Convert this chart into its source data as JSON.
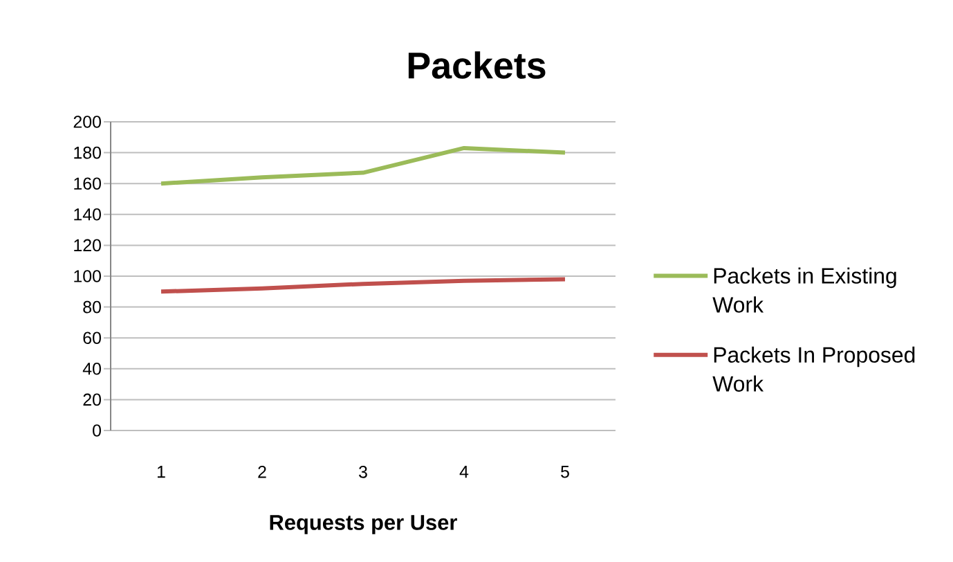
{
  "chart_data": {
    "type": "line",
    "title": "Packets",
    "xlabel": "Requests per User",
    "categories": [
      "1",
      "2",
      "3",
      "4",
      "5"
    ],
    "series": [
      {
        "name": "Packets in Existing Work",
        "color": "#9bbb59",
        "values": [
          160,
          164,
          167,
          183,
          180
        ]
      },
      {
        "name": "Packets In Proposed Work",
        "color": "#c0504d",
        "values": [
          90,
          92,
          95,
          97,
          98
        ]
      }
    ],
    "ylim": [
      0,
      200
    ],
    "yticks": [
      0,
      20,
      40,
      60,
      80,
      100,
      120,
      140,
      160,
      180,
      200
    ],
    "grid": "y",
    "legend": "right",
    "marker": "none",
    "line_style": "solid"
  }
}
